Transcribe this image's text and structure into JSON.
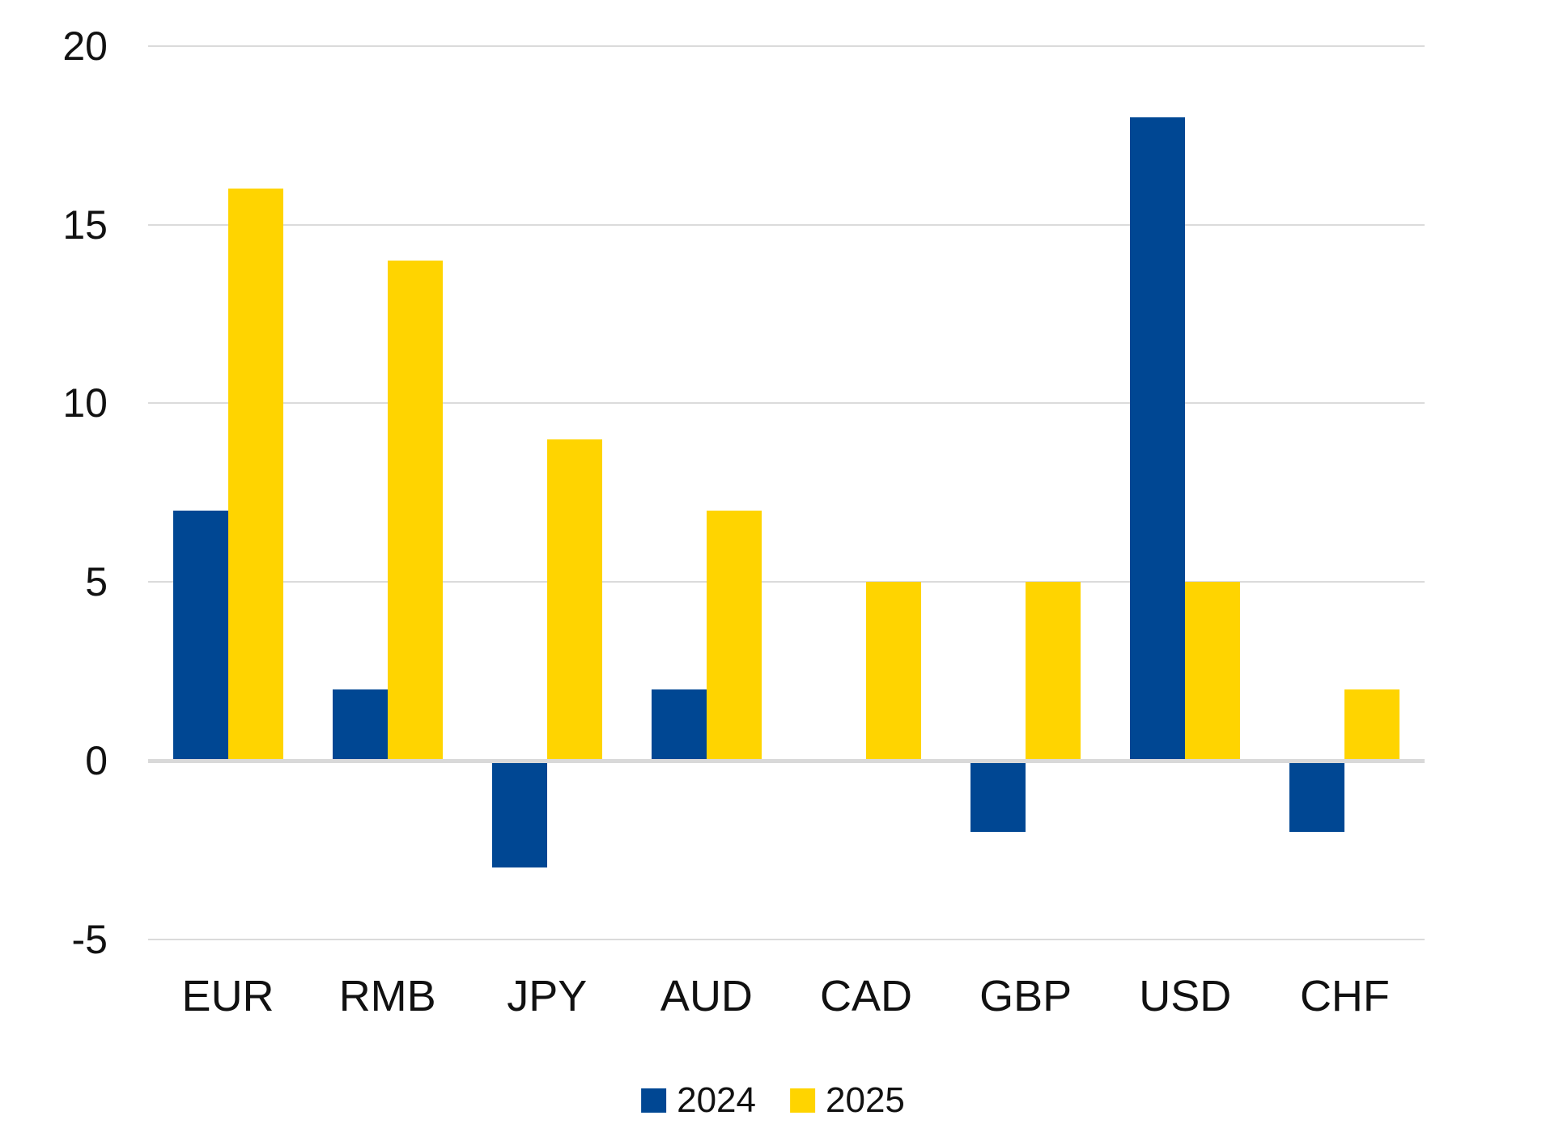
{
  "chart_data": {
    "type": "bar",
    "categories": [
      "EUR",
      "RMB",
      "JPY",
      "AUD",
      "CAD",
      "GBP",
      "USD",
      "CHF"
    ],
    "series": [
      {
        "name": "2024",
        "color": "#004793",
        "values": [
          7,
          2,
          -3,
          2,
          0,
          -2,
          18,
          -2
        ]
      },
      {
        "name": "2025",
        "color": "#FFD400",
        "values": [
          16,
          14,
          9,
          7,
          5,
          5,
          5,
          2
        ]
      }
    ],
    "title": "",
    "xlabel": "",
    "ylabel": "",
    "y_ticks": [
      20,
      15,
      10,
      5,
      0,
      -5
    ],
    "ylim": [
      -5,
      20
    ],
    "grid": true,
    "legend_position": "bottom"
  },
  "colors": {
    "gridline": "#DBDBDB",
    "zero_line": "#D9D9D9",
    "text": "#111111",
    "background": "#FFFFFF"
  }
}
